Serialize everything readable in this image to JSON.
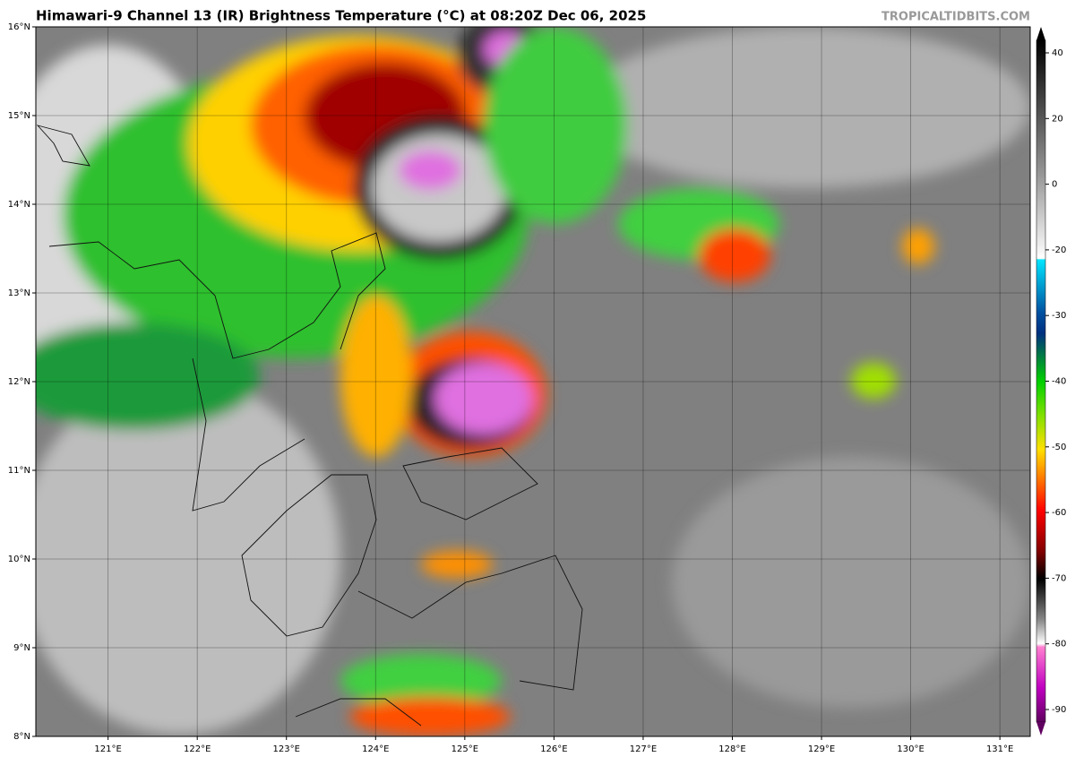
{
  "title": "Himawari-9 Channel 13 (IR) Brightness Temperature (°C) at 08:20Z Dec 06, 2025",
  "credit": "TROPICALTIDBITS.COM",
  "map": {
    "lon_range": [
      120.19,
      131.34
    ],
    "lat_range": [
      8,
      16
    ],
    "lon_ticks": [
      {
        "value": 121,
        "label": "121°E"
      },
      {
        "value": 122,
        "label": "122°E"
      },
      {
        "value": 123,
        "label": "123°E"
      },
      {
        "value": 124,
        "label": "124°E"
      },
      {
        "value": 125,
        "label": "125°E"
      },
      {
        "value": 126,
        "label": "126°E"
      },
      {
        "value": 127,
        "label": "127°E"
      },
      {
        "value": 128,
        "label": "128°E"
      },
      {
        "value": 129,
        "label": "129°E"
      },
      {
        "value": 130,
        "label": "130°E"
      },
      {
        "value": 131,
        "label": "131°E"
      }
    ],
    "lat_ticks": [
      {
        "value": 8,
        "label": "8°N"
      },
      {
        "value": 9,
        "label": "9°N"
      },
      {
        "value": 10,
        "label": "10°N"
      },
      {
        "value": 11,
        "label": "11°N"
      },
      {
        "value": 12,
        "label": "12°N"
      },
      {
        "value": 13,
        "label": "13°N"
      },
      {
        "value": 14,
        "label": "14°N"
      },
      {
        "value": 15,
        "label": "15°N"
      },
      {
        "value": 16,
        "label": "16°N"
      }
    ]
  },
  "colorbar": {
    "ticks": [
      40,
      20,
      0,
      -20,
      -30,
      -40,
      -50,
      -60,
      -70,
      -80,
      -90
    ]
  }
}
